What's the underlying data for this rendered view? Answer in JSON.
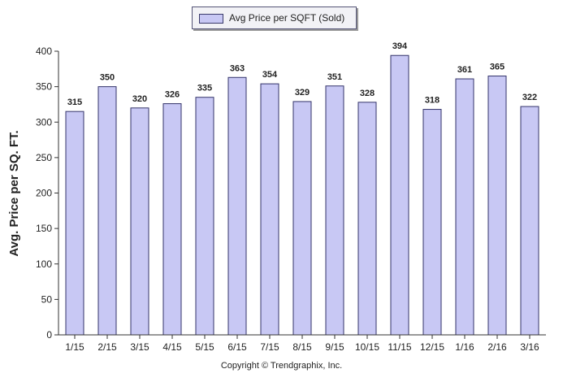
{
  "legend": {
    "label": "Avg Price per SQFT (Sold)",
    "swatch_color": "#c8c8f4"
  },
  "copyright": "Copyright © Trendgraphix, Inc.",
  "colors": {
    "bar_fill": "#c8c8f4",
    "bar_stroke": "#33336a",
    "axis": "#333333"
  },
  "chart_data": {
    "type": "bar",
    "title": "",
    "xlabel": "",
    "ylabel": "Avg. Price per SQ. FT.",
    "ylim": [
      0,
      400
    ],
    "yticks": [
      0,
      50,
      100,
      150,
      200,
      250,
      300,
      350,
      400
    ],
    "grid": false,
    "legend_position": "top-center",
    "categories": [
      "1/15",
      "2/15",
      "3/15",
      "4/15",
      "5/15",
      "6/15",
      "7/15",
      "8/15",
      "9/15",
      "10/15",
      "11/15",
      "12/15",
      "1/16",
      "2/16",
      "3/16"
    ],
    "series": [
      {
        "name": "Avg Price per SQFT (Sold)",
        "values": [
          315,
          350,
          320,
          326,
          335,
          363,
          354,
          329,
          351,
          328,
          394,
          318,
          361,
          365,
          322
        ]
      }
    ]
  }
}
